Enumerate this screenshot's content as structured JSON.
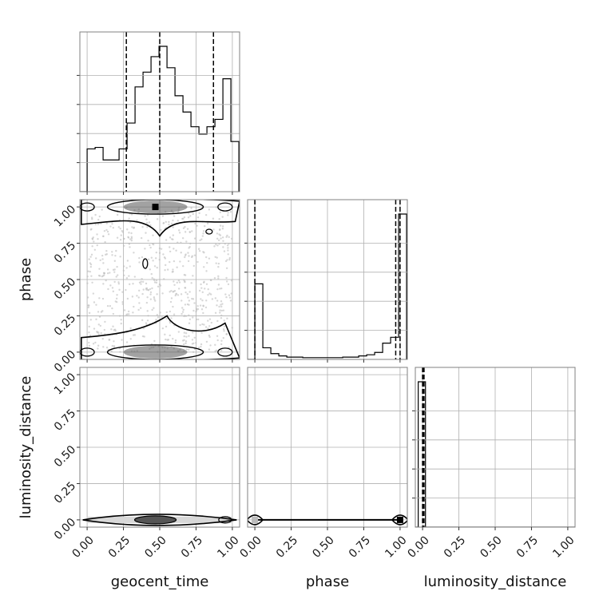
{
  "chart_data": {
    "type": "corner",
    "parameters": [
      "geocent_time",
      "phase",
      "luminosity_distance"
    ],
    "tick_values": [
      0.0,
      0.25,
      0.5,
      0.75,
      1.0
    ],
    "tick_labels": [
      "0.00",
      "0.25",
      "0.50",
      "0.75",
      "1.00"
    ],
    "range": [
      -0.05,
      1.05
    ],
    "grid": true,
    "colors": {
      "line": "#000000",
      "grid": "#b0b0b0",
      "scatter": "#bdbdbd",
      "frame": "#808080"
    },
    "histograms": [
      {
        "parameter": "geocent_time",
        "bin_edges": [
          -0.05,
          0.0,
          0.055,
          0.11,
          0.165,
          0.22,
          0.275,
          0.33,
          0.385,
          0.44,
          0.495,
          0.55,
          0.605,
          0.66,
          0.715,
          0.77,
          0.825,
          0.88,
          0.935,
          0.99,
          1.045
        ],
        "counts": [
          0,
          58,
          60,
          43,
          43,
          58,
          93,
          142,
          162,
          183,
          197,
          168,
          130,
          108,
          88,
          78,
          88,
          98,
          153,
          68
        ],
        "quantiles": [
          0.27,
          0.5,
          0.87
        ]
      },
      {
        "parameter": "phase",
        "bin_edges": [
          -0.05,
          0.0,
          0.055,
          0.11,
          0.165,
          0.22,
          0.275,
          0.33,
          0.385,
          0.44,
          0.495,
          0.55,
          0.605,
          0.66,
          0.715,
          0.77,
          0.825,
          0.88,
          0.935,
          0.99,
          1.045
        ],
        "counts": [
          0,
          130,
          20,
          10,
          6,
          4,
          4,
          3,
          3,
          3,
          3,
          3,
          4,
          4,
          6,
          8,
          12,
          28,
          38,
          250
        ],
        "quantiles": [
          0.0,
          0.97,
          1.0
        ]
      },
      {
        "parameter": "luminosity_distance",
        "bin_edges": [
          -0.05,
          -0.03,
          0.0,
          0.02,
          1.05
        ],
        "counts": [
          0,
          1,
          1,
          0
        ],
        "quantiles": [
          0.0,
          0.005,
          0.01
        ]
      }
    ],
    "panels_2d": [
      {
        "x": "geocent_time",
        "y": "phase",
        "style": "scatter + contours",
        "modes": [
          [
            0.47,
            1.0
          ],
          [
            0.47,
            0.0
          ]
        ]
      },
      {
        "x": "geocent_time",
        "y": "luminosity_distance",
        "style": "contours",
        "modes": [
          [
            0.47,
            0.0
          ]
        ]
      },
      {
        "x": "phase",
        "y": "luminosity_distance",
        "style": "contours",
        "modes": [
          [
            0.0,
            0.0
          ],
          [
            1.0,
            0.0
          ]
        ]
      }
    ],
    "xlabels": [
      "geocent_time",
      "phase",
      "luminosity_distance"
    ],
    "ylabels": [
      "",
      "phase",
      "luminosity_distance"
    ]
  }
}
